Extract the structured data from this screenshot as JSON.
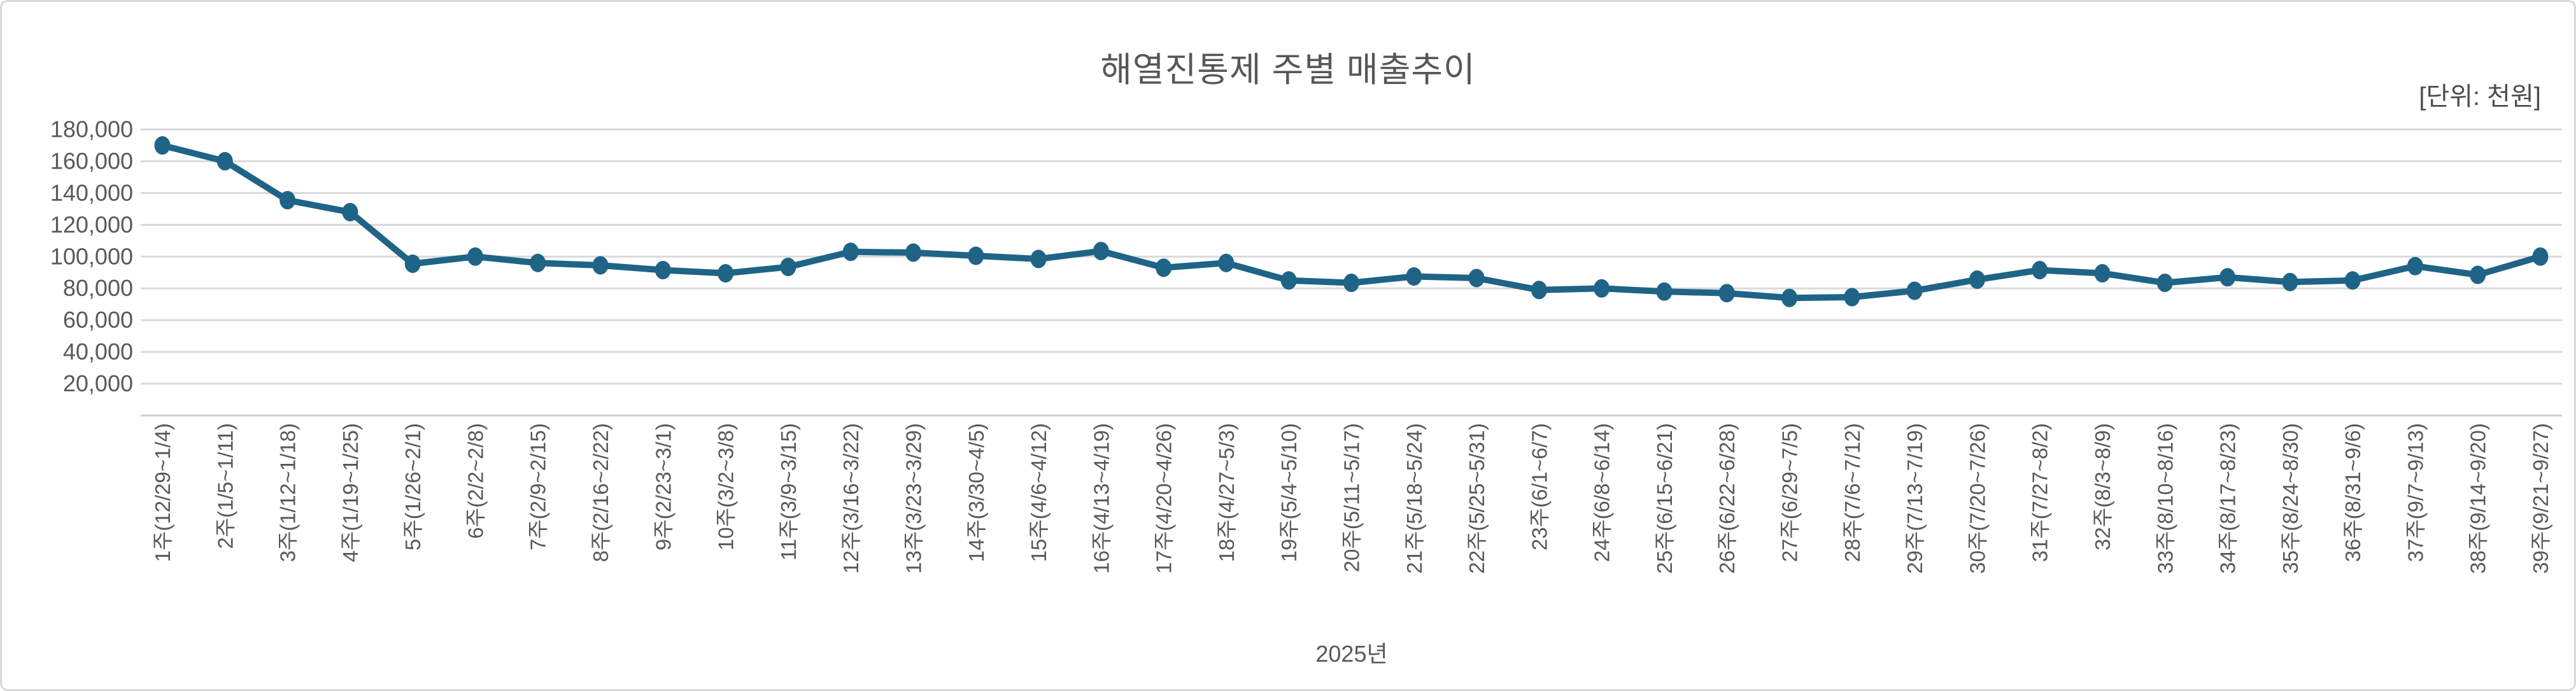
{
  "frame": {
    "background": "#FFFFFF",
    "border_color": "#D9D9D9"
  },
  "chart_data": {
    "type": "line",
    "title": "해열진통제 주별 매출추이",
    "unit_label": "[단위: 천원]",
    "xlabel": "2025년",
    "ylabel": "",
    "legend": "none",
    "grid": true,
    "ylim": [
      0,
      185000
    ],
    "yticks": [
      20000,
      40000,
      60000,
      80000,
      100000,
      120000,
      140000,
      160000,
      180000
    ],
    "ytick_labels": [
      "20,000",
      "40,000",
      "60,000",
      "80,000",
      "100,000",
      "120,000",
      "140,000",
      "160,000",
      "180,000"
    ],
    "categories": [
      "1주(12/29~1/4)",
      "2주(1/5~1/11)",
      "3주(1/12~1/18)",
      "4주(1/19~1/25)",
      "5주(1/26~2/1)",
      "6주(2/2~2/8)",
      "7주(2/9~2/15)",
      "8주(2/16~2/22)",
      "9주(2/23~3/1)",
      "10주(3/2~3/8)",
      "11주(3/9~3/15)",
      "12주(3/16~3/22)",
      "13주(3/23~3/29)",
      "14주(3/30~4/5)",
      "15주(4/6~4/12)",
      "16주(4/13~4/19)",
      "17주(4/20~4/26)",
      "18주(4/27~5/3)",
      "19주(5/4~5/10)",
      "20주(5/11~5/17)",
      "21주(5/18~5/24)",
      "22주(5/25~5/31)",
      "23주(6/1~6/7)",
      "24주(6/8~6/14)",
      "25주(6/15~6/21)",
      "26주(6/22~6/28)",
      "27주(6/29~7/5)",
      "28주(7/6~7/12)",
      "29주(7/13~7/19)",
      "30주(7/20~7/26)",
      "31주(7/27~8/2)",
      "32주(8/3~8/9)",
      "33주(8/10~8/16)",
      "34주(8/17~8/23)",
      "35주(8/24~8/30)",
      "36주(8/31~9/6)",
      "37주(9/7~9/13)",
      "38주(9/14~9/20)",
      "39주(9/21~9/27)"
    ],
    "values": [
      170000,
      160000,
      135500,
      128000,
      95500,
      100000,
      96000,
      94500,
      91500,
      89500,
      93500,
      103000,
      102500,
      100500,
      98500,
      103500,
      93000,
      96000,
      85000,
      83500,
      87500,
      86500,
      79000,
      80000,
      78000,
      77000,
      74000,
      74500,
      78500,
      85500,
      91500,
      89500,
      83500,
      87000,
      84000,
      85000,
      94000,
      88500,
      100000
    ],
    "line_color": "#1F6486",
    "marker_color": "#1F6486",
    "gridline_color": "#D9D9D9",
    "axisline_color": "#D0D0D0",
    "tick_color": "#595959",
    "title_color": "#575757"
  }
}
